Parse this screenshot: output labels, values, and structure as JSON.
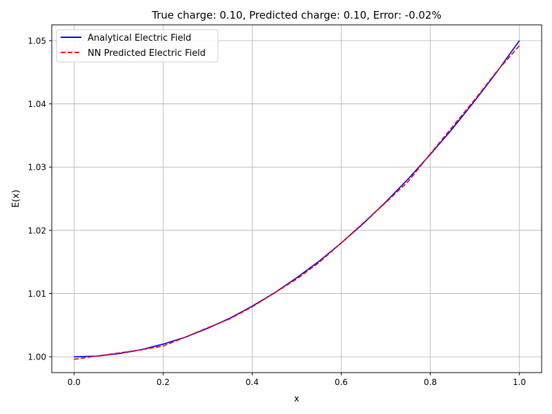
{
  "chart_data": {
    "type": "line",
    "title": "True charge: 0.10, Predicted charge: 0.10, Error: -0.02%",
    "xlabel": "x",
    "ylabel": "E(x)",
    "xlim": [
      -0.05,
      1.05
    ],
    "ylim": [
      0.9975,
      1.0525
    ],
    "xticks": [
      0.0,
      0.2,
      0.4,
      0.6,
      0.8,
      1.0
    ],
    "xtick_labels": [
      "0.0",
      "0.2",
      "0.4",
      "0.6",
      "0.8",
      "1.0"
    ],
    "yticks": [
      1.0,
      1.01,
      1.02,
      1.03,
      1.04,
      1.05
    ],
    "ytick_labels": [
      "1.00",
      "1.01",
      "1.02",
      "1.03",
      "1.04",
      "1.05"
    ],
    "grid": true,
    "legend_position": "upper-left",
    "series": [
      {
        "name": "Analytical Electric Field",
        "color": "#0000ff",
        "style": "solid",
        "x": [
          0.0,
          0.05,
          0.1,
          0.15,
          0.2,
          0.25,
          0.3,
          0.35,
          0.4,
          0.45,
          0.5,
          0.55,
          0.6,
          0.65,
          0.7,
          0.75,
          0.8,
          0.85,
          0.9,
          0.95,
          1.0
        ],
        "y": [
          1.0,
          1.0001,
          1.0005,
          1.0011,
          1.002,
          1.0031,
          1.0045,
          1.0061,
          1.008,
          1.0101,
          1.0125,
          1.0151,
          1.018,
          1.0211,
          1.0245,
          1.0281,
          1.032,
          1.0361,
          1.0405,
          1.0451,
          1.05
        ]
      },
      {
        "name": "NN Predicted Electric Field",
        "color": "#ff0000",
        "style": "dashed",
        "x": [
          0.0,
          0.05,
          0.1,
          0.15,
          0.2,
          0.25,
          0.3,
          0.35,
          0.4,
          0.45,
          0.5,
          0.55,
          0.6,
          0.65,
          0.7,
          0.75,
          0.8,
          0.85,
          0.9,
          0.95,
          1.0
        ],
        "y": [
          0.9996,
          1.0001,
          1.0006,
          1.0011,
          1.0017,
          1.0031,
          1.0046,
          1.006,
          1.0079,
          1.0101,
          1.0123,
          1.0149,
          1.018,
          1.0212,
          1.0244,
          1.0277,
          1.0321,
          1.0364,
          1.0407,
          1.0452,
          1.0492
        ]
      }
    ]
  }
}
